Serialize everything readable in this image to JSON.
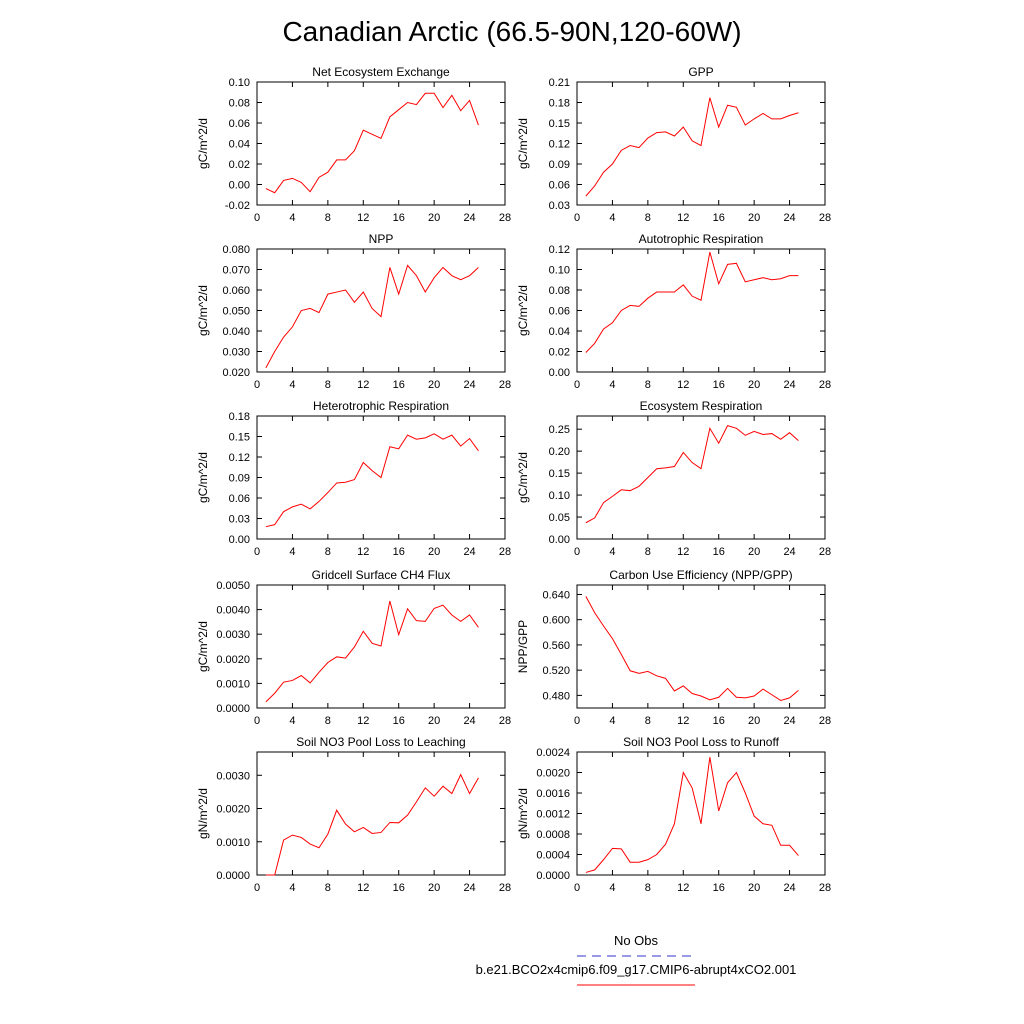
{
  "figure": {
    "title": "Canadian Arctic (66.5-90N,120-60W)",
    "line_color": "#ff0000",
    "obs_color": "#3333cc"
  },
  "legend": {
    "obs_label": "No Obs",
    "model_label": "b.e21.BCO2x4cmip6.f09_g17.CMIP6-abrupt4xCO2.001"
  },
  "chart_data": [
    {
      "type": "line",
      "title": "Net Ecosystem Exchange",
      "ylabel": "gC/m^2/d",
      "xlim": [
        0,
        28
      ],
      "ylim": [
        -0.02,
        0.1
      ],
      "yticks": [
        "-0.02",
        "0.00",
        "0.02",
        "0.04",
        "0.06",
        "0.08",
        "0.10"
      ],
      "xticks": [
        "0",
        "4",
        "8",
        "12",
        "16",
        "20",
        "24",
        "28"
      ],
      "x": [
        1,
        2,
        3,
        4,
        5,
        6,
        7,
        8,
        9,
        10,
        11,
        12,
        13,
        14,
        15,
        16,
        17,
        18,
        19,
        20,
        21,
        22,
        23,
        24,
        25
      ],
      "values": [
        -0.004,
        -0.008,
        0.004,
        0.006,
        0.002,
        -0.007,
        0.007,
        0.012,
        0.024,
        0.024,
        0.033,
        0.053,
        0.049,
        0.045,
        0.066,
        0.073,
        0.08,
        0.078,
        0.089,
        0.089,
        0.075,
        0.087,
        0.072,
        0.082,
        0.058
      ]
    },
    {
      "type": "line",
      "title": "GPP",
      "ylabel": "gC/m^2/d",
      "xlim": [
        0,
        28
      ],
      "ylim": [
        0.03,
        0.21
      ],
      "yticks": [
        "0.03",
        "0.06",
        "0.09",
        "0.12",
        "0.15",
        "0.18",
        "0.21"
      ],
      "xticks": [
        "0",
        "4",
        "8",
        "12",
        "16",
        "20",
        "24",
        "28"
      ],
      "x": [
        1,
        2,
        3,
        4,
        5,
        6,
        7,
        8,
        9,
        10,
        11,
        12,
        13,
        14,
        15,
        16,
        17,
        18,
        19,
        20,
        21,
        22,
        23,
        24,
        25
      ],
      "values": [
        0.043,
        0.058,
        0.078,
        0.09,
        0.11,
        0.117,
        0.114,
        0.128,
        0.136,
        0.137,
        0.131,
        0.144,
        0.124,
        0.117,
        0.187,
        0.144,
        0.176,
        0.173,
        0.147,
        0.156,
        0.164,
        0.156,
        0.156,
        0.161,
        0.165
      ]
    },
    {
      "type": "line",
      "title": "NPP",
      "ylabel": "gC/m^2/d",
      "xlim": [
        0,
        28
      ],
      "ylim": [
        0.02,
        0.08
      ],
      "yticks": [
        "0.020",
        "0.030",
        "0.040",
        "0.050",
        "0.060",
        "0.070",
        "0.080"
      ],
      "xticks": [
        "0",
        "4",
        "8",
        "12",
        "16",
        "20",
        "24",
        "28"
      ],
      "x": [
        1,
        2,
        3,
        4,
        5,
        6,
        7,
        8,
        9,
        10,
        11,
        12,
        13,
        14,
        15,
        16,
        17,
        18,
        19,
        20,
        21,
        22,
        23,
        24,
        25
      ],
      "values": [
        0.022,
        0.03,
        0.037,
        0.042,
        0.05,
        0.051,
        0.049,
        0.058,
        0.059,
        0.06,
        0.054,
        0.059,
        0.051,
        0.047,
        0.071,
        0.058,
        0.072,
        0.067,
        0.059,
        0.066,
        0.071,
        0.067,
        0.065,
        0.067,
        0.071
      ]
    },
    {
      "type": "line",
      "title": "Autotrophic Respiration",
      "ylabel": "gC/m^2/d",
      "xlim": [
        0,
        28
      ],
      "ylim": [
        0.0,
        0.12
      ],
      "yticks": [
        "0.00",
        "0.02",
        "0.04",
        "0.06",
        "0.08",
        "0.10",
        "0.12"
      ],
      "xticks": [
        "0",
        "4",
        "8",
        "12",
        "16",
        "20",
        "24",
        "28"
      ],
      "x": [
        1,
        2,
        3,
        4,
        5,
        6,
        7,
        8,
        9,
        10,
        11,
        12,
        13,
        14,
        15,
        16,
        17,
        18,
        19,
        20,
        21,
        22,
        23,
        24,
        25
      ],
      "values": [
        0.019,
        0.028,
        0.042,
        0.048,
        0.06,
        0.065,
        0.064,
        0.072,
        0.078,
        0.078,
        0.078,
        0.085,
        0.074,
        0.07,
        0.117,
        0.086,
        0.105,
        0.106,
        0.088,
        0.09,
        0.092,
        0.09,
        0.091,
        0.094,
        0.094
      ]
    },
    {
      "type": "line",
      "title": "Heterotrophic Respiration",
      "ylabel": "gC/m^2/d",
      "xlim": [
        0,
        28
      ],
      "ylim": [
        0.0,
        0.18
      ],
      "yticks": [
        "0.00",
        "0.03",
        "0.06",
        "0.09",
        "0.12",
        "0.15",
        "0.18"
      ],
      "xticks": [
        "0",
        "4",
        "8",
        "12",
        "16",
        "20",
        "24",
        "28"
      ],
      "x": [
        1,
        2,
        3,
        4,
        5,
        6,
        7,
        8,
        9,
        10,
        11,
        12,
        13,
        14,
        15,
        16,
        17,
        18,
        19,
        20,
        21,
        22,
        23,
        24,
        25
      ],
      "values": [
        0.018,
        0.021,
        0.04,
        0.047,
        0.051,
        0.044,
        0.055,
        0.068,
        0.082,
        0.083,
        0.087,
        0.112,
        0.1,
        0.09,
        0.135,
        0.132,
        0.152,
        0.146,
        0.148,
        0.154,
        0.146,
        0.152,
        0.136,
        0.147,
        0.129
      ]
    },
    {
      "type": "line",
      "title": "Ecosystem Respiration",
      "ylabel": "gC/m^2/d",
      "xlim": [
        0,
        28
      ],
      "ylim": [
        0.0,
        0.28
      ],
      "yticks": [
        "0.00",
        "0.05",
        "0.10",
        "0.15",
        "0.20",
        "0.25"
      ],
      "ytick_values": [
        0.0,
        0.05,
        0.1,
        0.15,
        0.2,
        0.25
      ],
      "xticks": [
        "0",
        "4",
        "8",
        "12",
        "16",
        "20",
        "24",
        "28"
      ],
      "x": [
        1,
        2,
        3,
        4,
        5,
        6,
        7,
        8,
        9,
        10,
        11,
        12,
        13,
        14,
        15,
        16,
        17,
        18,
        19,
        20,
        21,
        22,
        23,
        24,
        25
      ],
      "values": [
        0.037,
        0.048,
        0.083,
        0.097,
        0.112,
        0.11,
        0.12,
        0.14,
        0.16,
        0.162,
        0.165,
        0.197,
        0.174,
        0.16,
        0.252,
        0.218,
        0.258,
        0.252,
        0.236,
        0.245,
        0.238,
        0.24,
        0.227,
        0.242,
        0.224
      ]
    },
    {
      "type": "line",
      "title": "Gridcell Surface CH4 Flux",
      "ylabel": "gC/m^2/d",
      "xlim": [
        0,
        28
      ],
      "ylim": [
        0.0,
        0.005
      ],
      "yticks": [
        "0.0000",
        "0.0010",
        "0.0020",
        "0.0030",
        "0.0040",
        "0.0050"
      ],
      "xticks": [
        "0",
        "4",
        "8",
        "12",
        "16",
        "20",
        "24",
        "28"
      ],
      "x": [
        1,
        2,
        3,
        4,
        5,
        6,
        7,
        8,
        9,
        10,
        11,
        12,
        13,
        14,
        15,
        16,
        17,
        18,
        19,
        20,
        21,
        22,
        23,
        24,
        25
      ],
      "values": [
        0.00025,
        0.0006,
        0.00105,
        0.00112,
        0.00132,
        0.00102,
        0.00145,
        0.00185,
        0.00208,
        0.00203,
        0.00248,
        0.00312,
        0.00263,
        0.00252,
        0.00435,
        0.00298,
        0.00403,
        0.00355,
        0.00352,
        0.00405,
        0.00418,
        0.00378,
        0.00352,
        0.00378,
        0.00328
      ]
    },
    {
      "type": "line",
      "title": "Carbon Use Efficiency (NPP/GPP)",
      "ylabel": "NPP/GPP",
      "xlim": [
        0,
        28
      ],
      "ylim": [
        0.46,
        0.655
      ],
      "yticks": [
        "0.480",
        "0.520",
        "0.560",
        "0.600",
        "0.640"
      ],
      "ytick_values": [
        0.48,
        0.52,
        0.56,
        0.6,
        0.64
      ],
      "xticks": [
        "0",
        "4",
        "8",
        "12",
        "16",
        "20",
        "24",
        "28"
      ],
      "x": [
        1,
        2,
        3,
        4,
        5,
        6,
        7,
        8,
        9,
        10,
        11,
        12,
        13,
        14,
        15,
        16,
        17,
        18,
        19,
        20,
        21,
        22,
        23,
        24,
        25
      ],
      "values": [
        0.637,
        0.611,
        0.59,
        0.57,
        0.545,
        0.519,
        0.515,
        0.518,
        0.511,
        0.507,
        0.487,
        0.495,
        0.483,
        0.479,
        0.473,
        0.477,
        0.491,
        0.477,
        0.476,
        0.479,
        0.49,
        0.481,
        0.472,
        0.476,
        0.488
      ]
    },
    {
      "type": "line",
      "title": "Soil NO3 Pool Loss to Leaching",
      "ylabel": "gN/m^2/d",
      "xlim": [
        0,
        28
      ],
      "ylim": [
        0.0,
        0.0037
      ],
      "yticks": [
        "0.0000",
        "0.0010",
        "0.0020",
        "0.0030"
      ],
      "ytick_values": [
        0.0,
        0.001,
        0.002,
        0.003
      ],
      "xticks": [
        "0",
        "4",
        "8",
        "12",
        "16",
        "20",
        "24",
        "28"
      ],
      "x": [
        1,
        2,
        3,
        4,
        5,
        6,
        7,
        8,
        9,
        10,
        11,
        12,
        13,
        14,
        15,
        16,
        17,
        18,
        19,
        20,
        21,
        22,
        23,
        24,
        25
      ],
      "values": [
        0.0,
        0.0,
        0.00105,
        0.0012,
        0.00113,
        0.00093,
        0.00082,
        0.00123,
        0.00195,
        0.00153,
        0.0013,
        0.00143,
        0.00125,
        0.00128,
        0.00158,
        0.00157,
        0.0018,
        0.0022,
        0.00262,
        0.00237,
        0.00267,
        0.00245,
        0.00302,
        0.00245,
        0.00292
      ]
    },
    {
      "type": "line",
      "title": "Soil NO3 Pool Loss to Runoff",
      "ylabel": "gN/m^2/d",
      "xlim": [
        0,
        28
      ],
      "ylim": [
        0.0,
        0.0024
      ],
      "yticks": [
        "0.0000",
        "0.0004",
        "0.0008",
        "0.0012",
        "0.0016",
        "0.0020",
        "0.0024"
      ],
      "xticks": [
        "0",
        "4",
        "8",
        "12",
        "16",
        "20",
        "24",
        "28"
      ],
      "x": [
        1,
        2,
        3,
        4,
        5,
        6,
        7,
        8,
        9,
        10,
        11,
        12,
        13,
        14,
        15,
        16,
        17,
        18,
        19,
        20,
        21,
        22,
        23,
        24,
        25
      ],
      "values": [
        5e-05,
        0.0001,
        0.0003,
        0.00052,
        0.00051,
        0.00025,
        0.00025,
        0.0003,
        0.0004,
        0.0006,
        0.001,
        0.002,
        0.0017,
        0.001,
        0.0023,
        0.00125,
        0.0018,
        0.002,
        0.0016,
        0.00115,
        0.001,
        0.00097,
        0.00058,
        0.00058,
        0.00038
      ]
    }
  ]
}
